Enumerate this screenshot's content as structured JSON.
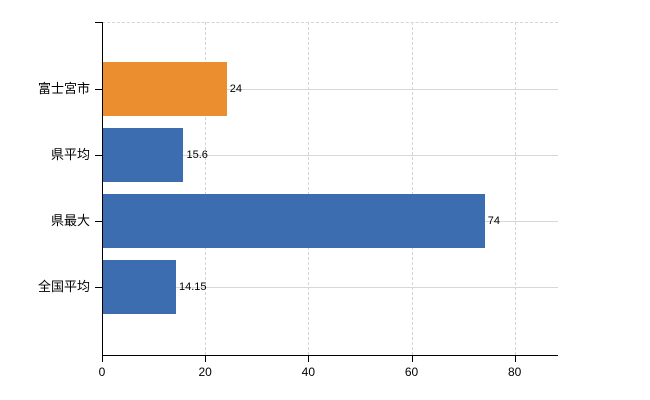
{
  "chart_data": {
    "type": "bar",
    "orientation": "horizontal",
    "title": "",
    "categories": [
      "富士宮市",
      "県平均",
      "県最大",
      "全国平均"
    ],
    "values": [
      24,
      15.6,
      74,
      14.15
    ],
    "value_labels": [
      "24",
      "15.6",
      "74",
      "14.15"
    ],
    "bar_colors": [
      "#EA8E30",
      "#3C6DB0",
      "#3C6DB0",
      "#3C6DB0"
    ],
    "x_ticks": [
      0,
      20,
      40,
      60,
      80
    ],
    "x_tick_labels": [
      "0",
      "20",
      "40",
      "60",
      "80"
    ],
    "xlim": [
      0,
      88.4
    ],
    "grid": true,
    "legend": "none",
    "background": "#ffffff"
  },
  "colors": {
    "bar_orange": "#EA8E30",
    "bar_blue": "#3C6DB0",
    "axis": "#000000",
    "grid_horizontal": "#d4d9d4",
    "grid_vertical": "#d7d2d8",
    "text": "#000000"
  }
}
